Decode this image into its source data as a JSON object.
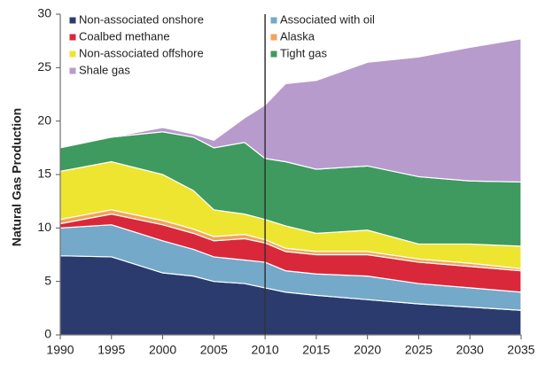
{
  "chart_data": {
    "type": "stacked_area",
    "y_label": "Natural Gas Production",
    "x": [
      1990,
      1995,
      2000,
      2003,
      2005,
      2008,
      2010,
      2012,
      2015,
      2020,
      2025,
      2030,
      2035
    ],
    "series": [
      {
        "name": "Non-associated onshore",
        "color": "#2c3b6e",
        "values": [
          7.4,
          7.3,
          5.8,
          5.5,
          5.0,
          4.8,
          4.4,
          4.0,
          3.7,
          3.3,
          2.9,
          2.6,
          2.3
        ]
      },
      {
        "name": "Associated with oil",
        "color": "#74a9c9",
        "values": [
          2.6,
          3.0,
          3.0,
          2.5,
          2.3,
          2.2,
          2.4,
          2.0,
          2.0,
          2.2,
          1.9,
          1.8,
          1.7
        ]
      },
      {
        "name": "Coalbed methane",
        "color": "#d9283a",
        "values": [
          0.4,
          1.0,
          1.5,
          1.5,
          1.5,
          2.0,
          1.8,
          1.8,
          1.8,
          2.0,
          2.0,
          2.0,
          2.0
        ]
      },
      {
        "name": "Alaska",
        "color": "#f3a35c",
        "values": [
          0.4,
          0.4,
          0.4,
          0.4,
          0.4,
          0.4,
          0.3,
          0.3,
          0.3,
          0.3,
          0.3,
          0.3,
          0.2
        ]
      },
      {
        "name": "Non-associated offshore",
        "color": "#eee530",
        "values": [
          4.5,
          4.5,
          4.3,
          3.6,
          2.5,
          1.9,
          1.9,
          2.1,
          1.7,
          2.0,
          1.4,
          1.8,
          2.1
        ]
      },
      {
        "name": "Tight gas",
        "color": "#3e9a5e",
        "values": [
          2.2,
          2.3,
          4.0,
          5.0,
          5.8,
          6.7,
          5.7,
          6.0,
          6.0,
          6.0,
          6.3,
          5.9,
          6.0
        ]
      },
      {
        "name": "Shale gas",
        "color": "#b79bcd",
        "values": [
          0,
          0,
          0.4,
          0.3,
          0.7,
          2.3,
          5.0,
          7.3,
          8.3,
          9.7,
          11.2,
          12.5,
          13.4
        ]
      }
    ],
    "xlim": [
      1990,
      2035
    ],
    "xticks": [
      1990,
      1995,
      2000,
      2005,
      2010,
      2015,
      2020,
      2025,
      2030,
      2035
    ],
    "ylim": [
      0,
      30
    ],
    "yticks": [
      0,
      5,
      10,
      15,
      20,
      25,
      30
    ],
    "vline": 2010
  }
}
